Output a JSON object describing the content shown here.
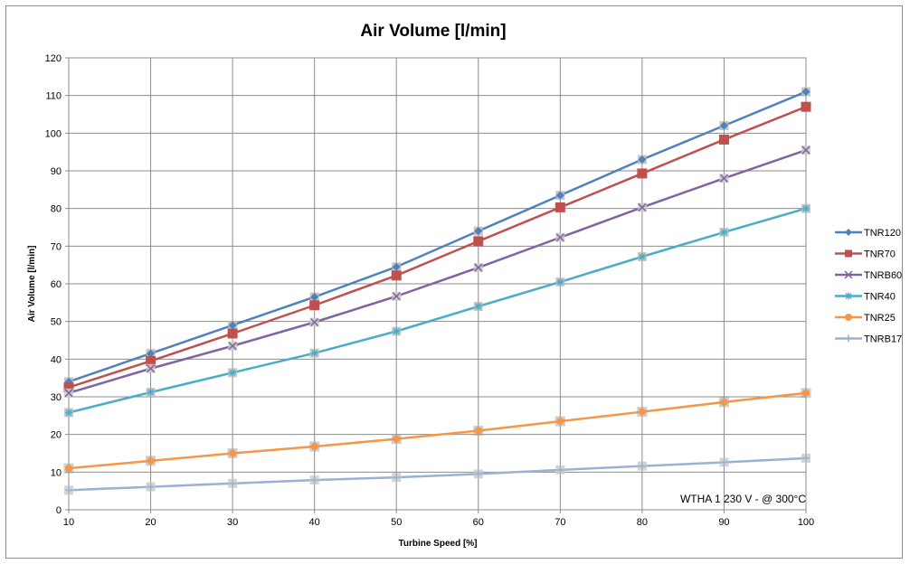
{
  "chart_data": {
    "type": "line",
    "title": "Air Volume [l/min]",
    "xlabel": "Turbine Speed [%]",
    "ylabel": "Air Volume [l/min]",
    "xlim": [
      10,
      100
    ],
    "ylim": [
      0,
      120
    ],
    "x_ticks": [
      10,
      20,
      30,
      40,
      50,
      60,
      70,
      80,
      90,
      100
    ],
    "y_ticks": [
      0,
      10,
      20,
      30,
      40,
      50,
      60,
      70,
      80,
      90,
      100,
      110,
      120
    ],
    "grid": true,
    "legend_position": "right",
    "annotation": "WTHA 1 230 V - @ 300°C",
    "x": [
      10,
      20,
      30,
      40,
      50,
      60,
      70,
      80,
      90,
      100
    ],
    "series": [
      {
        "name": "TNR120",
        "color": "#4f81bd",
        "marker": "diamond",
        "values": [
          34,
          41.5,
          49,
          56.5,
          64.5,
          74,
          83.5,
          93,
          102,
          111
        ]
      },
      {
        "name": "TNR70",
        "color": "#c0504d",
        "marker": "square",
        "values": [
          32.5,
          39.5,
          46.8,
          54.3,
          62.2,
          71.3,
          80.3,
          89.3,
          98.3,
          107
        ]
      },
      {
        "name": "TNRB60",
        "color": "#8064a2",
        "marker": "x",
        "values": [
          31,
          37.5,
          43.5,
          49.8,
          56.7,
          64.3,
          72.3,
          80.3,
          88,
          95.5
        ]
      },
      {
        "name": "TNR40",
        "color": "#4bacc6",
        "marker": "star",
        "values": [
          25.8,
          31.2,
          36.4,
          41.6,
          47.4,
          54,
          60.5,
          67.2,
          73.7,
          80
        ]
      },
      {
        "name": "TNR25",
        "color": "#f79646",
        "marker": "circle",
        "values": [
          11,
          13,
          15,
          16.8,
          18.8,
          21,
          23.5,
          26,
          28.6,
          31
        ]
      },
      {
        "name": "TNRB17",
        "color": "#9bb1d1",
        "marker": "plus",
        "values": [
          5.2,
          6.1,
          7,
          7.9,
          8.6,
          9.5,
          10.6,
          11.6,
          12.6,
          13.7
        ]
      }
    ]
  }
}
